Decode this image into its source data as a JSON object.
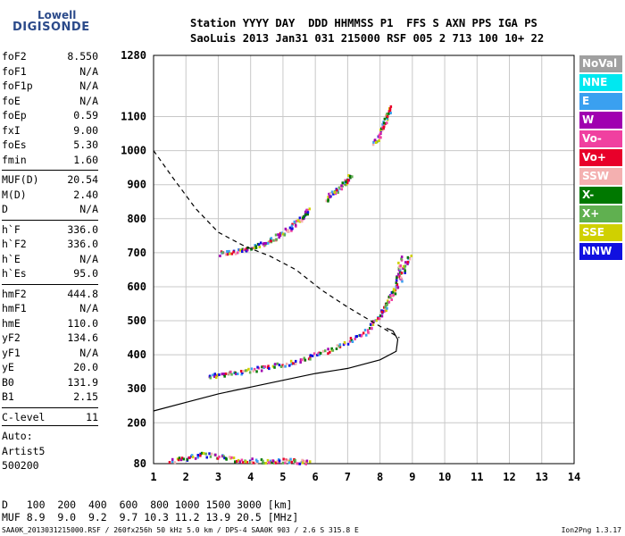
{
  "logo": {
    "line1": "Lowell",
    "line2": "DIGISONDE"
  },
  "header": {
    "line1": "Station YYYY DAY  DDD HHMMSS P1  FFS S AXN PPS IGA PS",
    "line2": "SaoLuis 2013 Jan31 031 215000 RSF 005 2 713 100 10+ 22"
  },
  "params": [
    {
      "name": "foF2",
      "value": "8.550"
    },
    {
      "name": "foF1",
      "value": "N/A"
    },
    {
      "name": "foF1p",
      "value": "N/A"
    },
    {
      "name": "foE",
      "value": "N/A"
    },
    {
      "name": "foEp",
      "value": "0.59"
    },
    {
      "name": "fxI",
      "value": "9.00"
    },
    {
      "name": "foEs",
      "value": "5.30"
    },
    {
      "name": "fmin",
      "value": "1.60"
    },
    {
      "name": "MUF(D)",
      "value": "20.54"
    },
    {
      "name": "M(D)",
      "value": "2.40"
    },
    {
      "name": "D",
      "value": "N/A"
    },
    {
      "name": "h`F",
      "value": "336.0"
    },
    {
      "name": "h`F2",
      "value": "336.0"
    },
    {
      "name": "h`E",
      "value": "N/A"
    },
    {
      "name": "h`Es",
      "value": "95.0"
    },
    {
      "name": "hmF2",
      "value": "444.8"
    },
    {
      "name": "hmF1",
      "value": "N/A"
    },
    {
      "name": "hmE",
      "value": "110.0"
    },
    {
      "name": "yF2",
      "value": "134.6"
    },
    {
      "name": "yF1",
      "value": "N/A"
    },
    {
      "name": "yE",
      "value": "20.0"
    },
    {
      "name": "B0",
      "value": "131.9"
    },
    {
      "name": "B1",
      "value": "2.15"
    },
    {
      "name": "C-level",
      "value": "11"
    }
  ],
  "auto": {
    "l1": "Auto:",
    "l2": "Artist5",
    "l3": "500200"
  },
  "legend": [
    {
      "label": "NoVal",
      "color": "#a0a0a0"
    },
    {
      "label": "NNE",
      "color": "#00e8f0"
    },
    {
      "label": "E",
      "color": "#3aa0f0"
    },
    {
      "label": "W",
      "color": "#a000b0"
    },
    {
      "label": "Vo-",
      "color": "#f040a0"
    },
    {
      "label": "Vo+",
      "color": "#e8002a"
    },
    {
      "label": "SSW",
      "color": "#f4b0b0"
    },
    {
      "label": "X-",
      "color": "#007800"
    },
    {
      "label": "X+",
      "color": "#60b050"
    },
    {
      "label": "SSE",
      "color": "#d0d000"
    },
    {
      "label": "NNW",
      "color": "#1010e0"
    }
  ],
  "chart_data": {
    "type": "scatter",
    "xlabel": "",
    "ylabel": "",
    "xlim": [
      1,
      14
    ],
    "ylim": [
      80,
      1280
    ],
    "x_ticks": [
      "1",
      "2",
      "3",
      "4",
      "5",
      "6",
      "7",
      "8",
      "9",
      "10",
      "11",
      "12",
      "13",
      "14"
    ],
    "y_ticks": [
      "80",
      "200",
      "300",
      "400",
      "500",
      "600",
      "700",
      "800",
      "900",
      "1000",
      "1100",
      "1280"
    ],
    "series": [
      {
        "trace": "F2-O-trace",
        "points": [
          [
            2.7,
            340
          ],
          [
            3.5,
            350
          ],
          [
            4.5,
            365
          ],
          [
            5.5,
            385
          ],
          [
            6.5,
            420
          ],
          [
            7.5,
            465
          ],
          [
            8.0,
            520
          ],
          [
            8.3,
            570
          ],
          [
            8.5,
            610
          ],
          [
            8.6,
            690
          ]
        ]
      },
      {
        "trace": "F2-X-trace",
        "points": [
          [
            8.6,
            620
          ],
          [
            8.9,
            700
          ]
        ]
      },
      {
        "trace": "F2-2hop",
        "points": [
          [
            3.0,
            700
          ],
          [
            3.8,
            710
          ],
          [
            4.5,
            735
          ],
          [
            5.0,
            760
          ],
          [
            5.5,
            800
          ],
          [
            5.8,
            830
          ]
        ]
      },
      {
        "trace": "F2-3hop",
        "points": [
          [
            6.3,
            860
          ],
          [
            6.8,
            900
          ],
          [
            7.1,
            930
          ]
        ]
      },
      {
        "trace": "F2-4hop",
        "points": [
          [
            7.8,
            1020
          ],
          [
            8.1,
            1080
          ],
          [
            8.3,
            1130
          ]
        ]
      },
      {
        "trace": "Es-trace",
        "points": [
          [
            1.5,
            90
          ],
          [
            2.5,
            110
          ],
          [
            3.5,
            95
          ],
          [
            4.5,
            88
          ],
          [
            5.2,
            92
          ],
          [
            5.8,
            86
          ]
        ]
      }
    ],
    "profile_curve": [
      [
        1,
        235
      ],
      [
        2,
        260
      ],
      [
        3,
        285
      ],
      [
        4,
        305
      ],
      [
        5,
        325
      ],
      [
        6,
        345
      ],
      [
        7,
        360
      ],
      [
        8,
        385
      ],
      [
        8.5,
        410
      ],
      [
        8.55,
        445
      ],
      [
        8.4,
        470
      ],
      [
        8.2,
        478
      ]
    ],
    "muf_curve": [
      [
        1.0,
        1000
      ],
      [
        1.6,
        920
      ],
      [
        2.3,
        830
      ],
      [
        3.0,
        760
      ],
      [
        3.8,
        720
      ],
      [
        4.6,
        690
      ],
      [
        5.4,
        650
      ],
      [
        6.2,
        590
      ],
      [
        7.0,
        540
      ],
      [
        7.8,
        495
      ],
      [
        8.6,
        450
      ]
    ]
  },
  "dm_table": {
    "d_label": "D",
    "d_values": "100  200  400  600  800 1000 1500 3000 [km]",
    "muf_label": "MUF",
    "muf_values": "8.9  9.0  9.2  9.7 10.3 11.2 13.9 20.5 [MHz]"
  },
  "footer": {
    "left": "SAA0K_2013031215000.RSF / 260fx256h 50 kHz 5.0 km / DPS-4 SAA0K 903 / 2.6 S 315.8 E",
    "right": "Ion2Png 1.3.17"
  }
}
